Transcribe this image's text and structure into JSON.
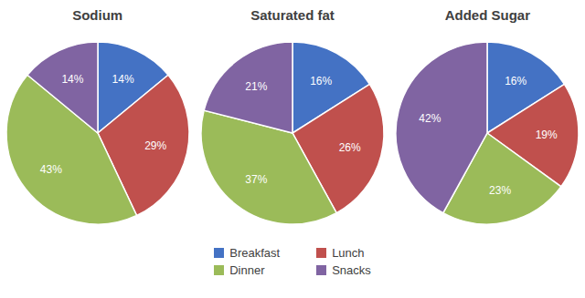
{
  "chart_data": [
    {
      "type": "pie",
      "title": "Sodium",
      "categories": [
        "Breakfast",
        "Lunch",
        "Dinner",
        "Snacks"
      ],
      "values": [
        14,
        29,
        43,
        14
      ],
      "value_labels": [
        "14%",
        "29%",
        "43%",
        "14%"
      ],
      "colors": [
        "#4472C4",
        "#C0504D",
        "#9BBB59",
        "#8064A2"
      ],
      "data_labels": true,
      "legend": "bottom"
    },
    {
      "type": "pie",
      "title": "Saturated fat",
      "categories": [
        "Breakfast",
        "Lunch",
        "Dinner",
        "Snacks"
      ],
      "values": [
        16,
        26,
        37,
        21
      ],
      "value_labels": [
        "16%",
        "26%",
        "37%",
        "21%"
      ],
      "colors": [
        "#4472C4",
        "#C0504D",
        "#9BBB59",
        "#8064A2"
      ],
      "data_labels": true,
      "legend": "bottom"
    },
    {
      "type": "pie",
      "title": "Added Sugar",
      "categories": [
        "Breakfast",
        "Lunch",
        "Dinner",
        "Snacks"
      ],
      "values": [
        16,
        19,
        23,
        42
      ],
      "value_labels": [
        "16%",
        "19%",
        "23%",
        "42%"
      ],
      "colors": [
        "#4472C4",
        "#C0504D",
        "#9BBB59",
        "#8064A2"
      ],
      "data_labels": true,
      "legend": "bottom"
    }
  ]
}
